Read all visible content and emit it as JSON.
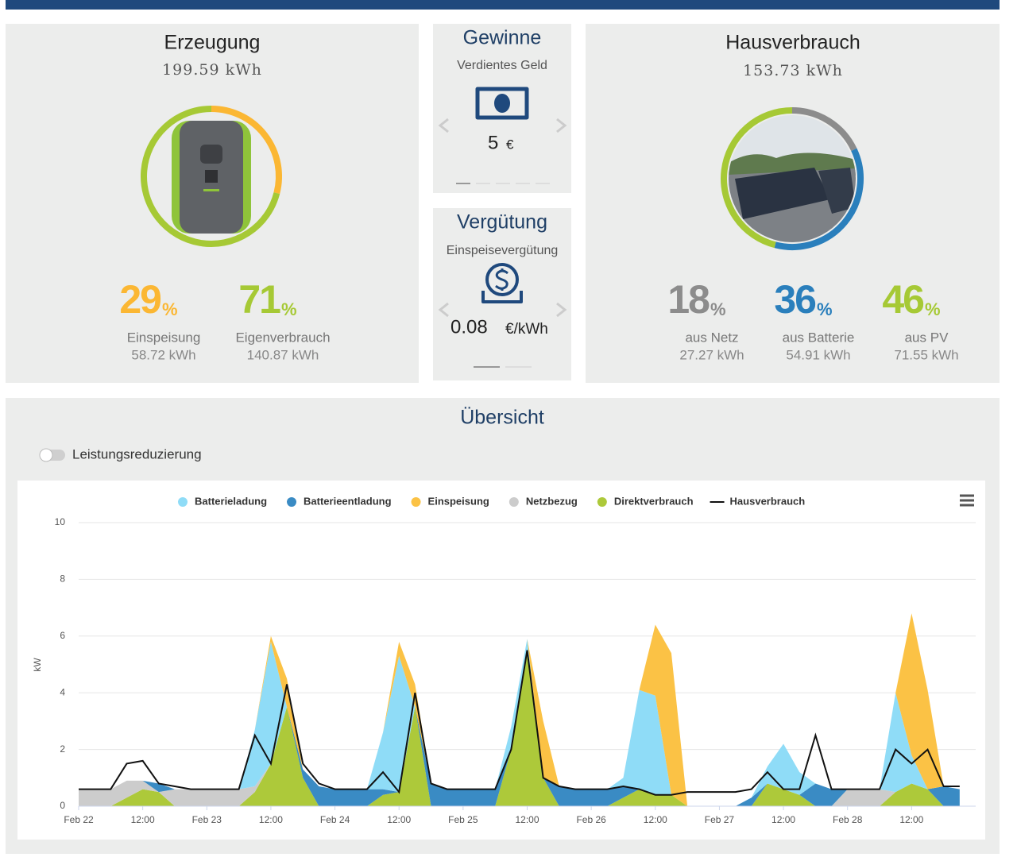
{
  "production": {
    "title": "Erzeugung",
    "total": "199.59 kWh",
    "stats": [
      {
        "value": 29,
        "unit": "%",
        "label": "Einspeisung",
        "energy": "58.72 kWh",
        "color": "#fbb733"
      },
      {
        "value": 71,
        "unit": "%",
        "label": "Eigenverbrauch",
        "energy": "140.87 kWh",
        "color": "#a6c935"
      }
    ]
  },
  "earnings": {
    "title": "Gewinne",
    "subtitle": "Verdientes Geld",
    "amount": "5",
    "unit": "€"
  },
  "tariff": {
    "title": "Vergütung",
    "subtitle": "Einspeisevergütung",
    "amount": "0.08",
    "unit": "€/kWh"
  },
  "consumption": {
    "title": "Hausverbrauch",
    "total": "153.73 kWh",
    "stats": [
      {
        "value": 18,
        "unit": "%",
        "label": "aus Netz",
        "energy": "27.27 kWh",
        "color": "#8c8c8c"
      },
      {
        "value": 36,
        "unit": "%",
        "label": "aus Batterie",
        "energy": "54.91 kWh",
        "color": "#2a7fbc"
      },
      {
        "value": 46,
        "unit": "%",
        "label": "aus PV",
        "energy": "71.55 kWh",
        "color": "#a6c935"
      }
    ]
  },
  "overview": {
    "title": "Übersicht",
    "toggle": "Leistungsreduzierung"
  },
  "chart_data": {
    "type": "area",
    "y_label": "kW",
    "ylim": [
      0,
      10
    ],
    "yticks": [
      0,
      2,
      4,
      6,
      8,
      10
    ],
    "grid": true,
    "xlim": [
      0,
      168
    ],
    "xticks": [
      {
        "value": 0,
        "label": "Feb 22"
      },
      {
        "value": 12,
        "label": "12:00"
      },
      {
        "value": 24,
        "label": "Feb 23"
      },
      {
        "value": 36,
        "label": "12:00"
      },
      {
        "value": 48,
        "label": "Feb 24"
      },
      {
        "value": 60,
        "label": "12:00"
      },
      {
        "value": 72,
        "label": "Feb 25"
      },
      {
        "value": 84,
        "label": "12:00"
      },
      {
        "value": 96,
        "label": "Feb 26"
      },
      {
        "value": 108,
        "label": "12:00"
      },
      {
        "value": 120,
        "label": "Feb 27"
      },
      {
        "value": 132,
        "label": "12:00"
      },
      {
        "value": 144,
        "label": "Feb 28"
      },
      {
        "value": 156,
        "label": "12:00"
      }
    ],
    "x": [
      0,
      3,
      6,
      9,
      12,
      15,
      18,
      21,
      24,
      27,
      30,
      33,
      36,
      39,
      42,
      45,
      48,
      51,
      54,
      57,
      60,
      63,
      66,
      69,
      72,
      75,
      78,
      81,
      84,
      87,
      90,
      93,
      96,
      99,
      102,
      105,
      108,
      111,
      114,
      117,
      120,
      123,
      126,
      129,
      132,
      135,
      138,
      141,
      144,
      147,
      150,
      153,
      156,
      159,
      162,
      165
    ],
    "series": [
      {
        "name": "Batterieladung",
        "color": "#8fdcf7",
        "values": [
          0,
          0,
          0,
          0,
          0,
          0,
          0,
          0,
          0,
          0,
          0,
          2.0,
          4.3,
          0,
          0,
          0,
          0,
          0,
          0,
          2.0,
          4.8,
          0,
          0,
          0,
          0,
          0,
          0,
          0.8,
          0.4,
          0,
          0,
          0,
          0,
          0,
          0.3,
          3.5,
          3.5,
          0,
          0,
          0,
          0,
          0,
          0,
          0.6,
          1.6,
          0.8,
          0,
          0,
          0,
          0,
          0,
          3.5,
          1.0,
          0,
          0,
          0
        ]
      },
      {
        "name": "Batterieentladung",
        "color": "#3a8bc4",
        "values": [
          0,
          0,
          0,
          0,
          0,
          0.3,
          0,
          0,
          0,
          0,
          0,
          0,
          0,
          0,
          0.3,
          0.7,
          0.6,
          0.6,
          0.6,
          0.2,
          0,
          0,
          0.8,
          0.6,
          0.6,
          0.6,
          0.6,
          0,
          0,
          0,
          0.7,
          0.6,
          0.6,
          0.6,
          0.4,
          0,
          0,
          0,
          0,
          0,
          0,
          0,
          0.3,
          0,
          0,
          0,
          0.8,
          0.6,
          0,
          0,
          0,
          0,
          0,
          0,
          0.7,
          0.6
        ]
      },
      {
        "name": "Einspeisung",
        "color": "#fbc245",
        "values": [
          0,
          0,
          0,
          0,
          0,
          0,
          0,
          0,
          0,
          0,
          0,
          0,
          0.2,
          1.0,
          0,
          0,
          0,
          0,
          0,
          0,
          0.5,
          0.8,
          0,
          0,
          0,
          0,
          0,
          0,
          0,
          2.0,
          0,
          0,
          0,
          0,
          0,
          0,
          2.5,
          5.0,
          0,
          0,
          0,
          0,
          0,
          0,
          0,
          0,
          0,
          0,
          0,
          0,
          0,
          0,
          5.0,
          3.5,
          0,
          0
        ]
      },
      {
        "name": "Netzbezug",
        "color": "#cccccc",
        "values": [
          0.6,
          0.6,
          0.6,
          0.6,
          0.3,
          0,
          0.6,
          0.6,
          0.6,
          0.6,
          0.6,
          0.2,
          0,
          0,
          0,
          0,
          0,
          0,
          0,
          0,
          0,
          0,
          0,
          0,
          0,
          0,
          0,
          0,
          0,
          0,
          0,
          0,
          0,
          0,
          0,
          0,
          0,
          0,
          0,
          0,
          0,
          0,
          0,
          0,
          0,
          0,
          0,
          0,
          0.6,
          0.6,
          0.6,
          0,
          0,
          0,
          0,
          0
        ]
      },
      {
        "name": "Direktverbrauch",
        "color": "#adc93a",
        "values": [
          0,
          0,
          0,
          0.3,
          0.6,
          0.5,
          0,
          0,
          0,
          0,
          0,
          0.5,
          1.5,
          3.5,
          1.0,
          0,
          0,
          0,
          0,
          0.4,
          0.5,
          3.5,
          0,
          0,
          0,
          0,
          0,
          2.0,
          5.5,
          1.0,
          0,
          0,
          0,
          0,
          0.3,
          0.6,
          0.4,
          0.4,
          0,
          0,
          0,
          0,
          0,
          0.8,
          0.6,
          0.4,
          0,
          0,
          0,
          0,
          0,
          0.5,
          0.8,
          0.6,
          0,
          0
        ]
      },
      {
        "name": "Hausverbrauch",
        "color": "#111111",
        "type": "line",
        "values": [
          0.6,
          0.6,
          0.6,
          1.5,
          1.6,
          0.8,
          0.7,
          0.6,
          0.6,
          0.6,
          0.6,
          2.5,
          1.5,
          4.3,
          1.5,
          0.8,
          0.6,
          0.6,
          0.6,
          1.2,
          0.5,
          4.0,
          0.8,
          0.6,
          0.6,
          0.6,
          0.6,
          2.0,
          5.5,
          1.0,
          0.7,
          0.6,
          0.6,
          0.6,
          0.7,
          0.6,
          0.4,
          0.4,
          0.5,
          0.5,
          0.5,
          0.5,
          0.6,
          1.2,
          0.6,
          0.6,
          2.5,
          0.6,
          0.6,
          0.6,
          0.6,
          2.0,
          1.5,
          2.0,
          0.7,
          0.7
        ]
      }
    ]
  }
}
